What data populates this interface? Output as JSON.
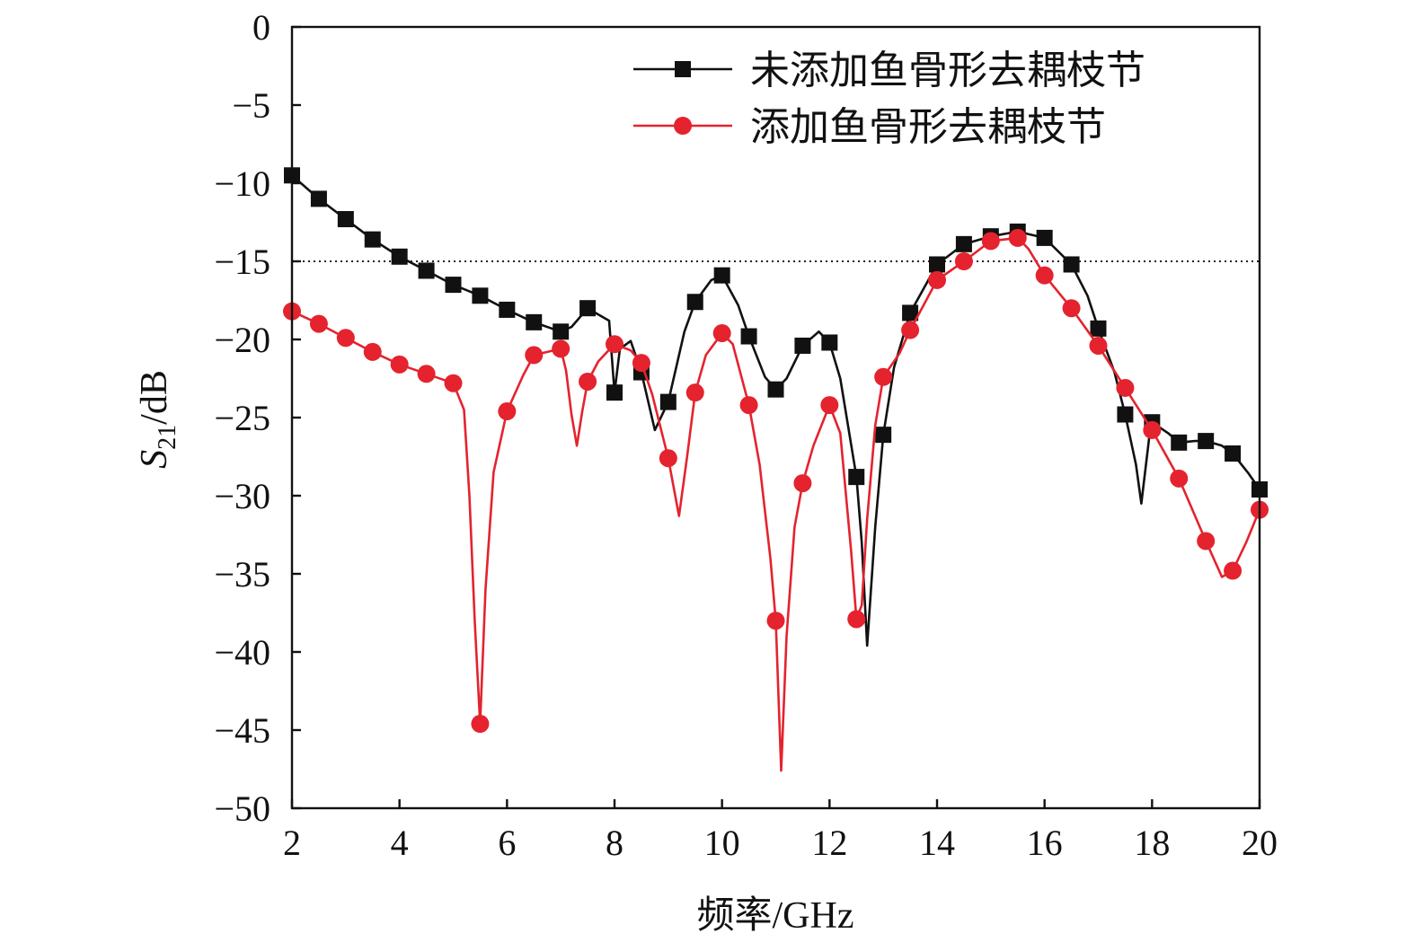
{
  "chart_data": {
    "type": "line",
    "title": "",
    "xlabel": "频率/GHz",
    "ylabel": {
      "main": "S",
      "sub": "21",
      "rest": "/dB"
    },
    "xlim": [
      2,
      20
    ],
    "ylim": [
      -50,
      0
    ],
    "xticks": [
      2,
      4,
      6,
      8,
      10,
      12,
      14,
      16,
      18,
      20
    ],
    "xtick_labels": [
      "2",
      "4",
      "6",
      "8",
      "10",
      "12",
      "14",
      "16",
      "18",
      "20"
    ],
    "yticks": [
      0,
      -5,
      -10,
      -15,
      -20,
      -25,
      -30,
      -35,
      -40,
      -45,
      -50
    ],
    "ytick_labels": [
      "0",
      "−5",
      "−10",
      "−15",
      "−20",
      "−25",
      "−30",
      "−35",
      "−40",
      "−45",
      "−50"
    ],
    "reference_line": {
      "y": -15,
      "style": "dotted"
    },
    "grid": false,
    "legend_position": "top-right",
    "series": [
      {
        "name": "未添加鱼骨形去耦枝节",
        "color": "#111111",
        "marker": "square",
        "curve": [
          [
            2.0,
            -9.5
          ],
          [
            2.5,
            -11.0
          ],
          [
            3.0,
            -12.3
          ],
          [
            3.5,
            -13.6
          ],
          [
            4.0,
            -14.7
          ],
          [
            4.5,
            -15.6
          ],
          [
            5.0,
            -16.5
          ],
          [
            5.5,
            -17.2
          ],
          [
            6.0,
            -18.1
          ],
          [
            6.5,
            -18.9
          ],
          [
            7.0,
            -19.5
          ],
          [
            7.2,
            -19.2
          ],
          [
            7.5,
            -18.0
          ],
          [
            7.7,
            -18.4
          ],
          [
            7.9,
            -18.8
          ],
          [
            8.0,
            -23.4
          ],
          [
            8.1,
            -20.6
          ],
          [
            8.3,
            -20.1
          ],
          [
            8.5,
            -22.1
          ],
          [
            8.75,
            -25.8
          ],
          [
            9.0,
            -24.0
          ],
          [
            9.3,
            -19.5
          ],
          [
            9.5,
            -17.6
          ],
          [
            9.8,
            -16.2
          ],
          [
            10.0,
            -15.9
          ],
          [
            10.3,
            -17.8
          ],
          [
            10.5,
            -19.8
          ],
          [
            10.8,
            -22.4
          ],
          [
            11.0,
            -23.2
          ],
          [
            11.2,
            -22.5
          ],
          [
            11.5,
            -20.4
          ],
          [
            11.8,
            -19.5
          ],
          [
            12.0,
            -20.2
          ],
          [
            12.2,
            -22.5
          ],
          [
            12.5,
            -28.8
          ],
          [
            12.6,
            -33.0
          ],
          [
            12.7,
            -39.6
          ],
          [
            12.85,
            -32.0
          ],
          [
            13.0,
            -26.1
          ],
          [
            13.2,
            -21.8
          ],
          [
            13.5,
            -18.3
          ],
          [
            14.0,
            -15.2
          ],
          [
            14.5,
            -13.9
          ],
          [
            15.0,
            -13.4
          ],
          [
            15.5,
            -13.1
          ],
          [
            16.0,
            -13.5
          ],
          [
            16.5,
            -15.2
          ],
          [
            16.8,
            -17.2
          ],
          [
            17.0,
            -19.3
          ],
          [
            17.3,
            -22.1
          ],
          [
            17.5,
            -24.8
          ],
          [
            17.7,
            -28.0
          ],
          [
            17.8,
            -30.5
          ],
          [
            17.95,
            -26.2
          ],
          [
            18.0,
            -25.3
          ],
          [
            18.3,
            -26.0
          ],
          [
            18.5,
            -26.6
          ],
          [
            18.8,
            -26.5
          ],
          [
            19.0,
            -26.5
          ],
          [
            19.3,
            -26.8
          ],
          [
            19.5,
            -27.3
          ],
          [
            19.8,
            -28.6
          ],
          [
            20.0,
            -29.6
          ]
        ],
        "markers": [
          [
            2.0,
            -9.5
          ],
          [
            2.5,
            -11.0
          ],
          [
            3.0,
            -12.3
          ],
          [
            3.5,
            -13.6
          ],
          [
            4.0,
            -14.7
          ],
          [
            4.5,
            -15.6
          ],
          [
            5.0,
            -16.5
          ],
          [
            5.5,
            -17.2
          ],
          [
            6.0,
            -18.1
          ],
          [
            6.5,
            -18.9
          ],
          [
            7.0,
            -19.5
          ],
          [
            7.5,
            -18.0
          ],
          [
            8.0,
            -23.4
          ],
          [
            8.5,
            -22.1
          ],
          [
            9.0,
            -24.0
          ],
          [
            9.5,
            -17.6
          ],
          [
            10.0,
            -15.9
          ],
          [
            10.5,
            -19.8
          ],
          [
            11.0,
            -23.2
          ],
          [
            11.5,
            -20.4
          ],
          [
            12.0,
            -20.2
          ],
          [
            12.5,
            -28.8
          ],
          [
            13.0,
            -26.1
          ],
          [
            13.5,
            -18.3
          ],
          [
            14.0,
            -15.2
          ],
          [
            14.5,
            -13.9
          ],
          [
            15.0,
            -13.4
          ],
          [
            15.5,
            -13.1
          ],
          [
            16.0,
            -13.5
          ],
          [
            16.5,
            -15.2
          ],
          [
            17.0,
            -19.3
          ],
          [
            17.5,
            -24.8
          ],
          [
            18.0,
            -25.3
          ],
          [
            18.5,
            -26.6
          ],
          [
            19.0,
            -26.5
          ],
          [
            19.5,
            -27.3
          ],
          [
            20.0,
            -29.6
          ]
        ]
      },
      {
        "name": "添加鱼骨形去耦枝节",
        "color": "#e4232e",
        "marker": "circle",
        "curve": [
          [
            2.0,
            -18.2
          ],
          [
            2.5,
            -19.0
          ],
          [
            3.0,
            -19.9
          ],
          [
            3.5,
            -20.8
          ],
          [
            4.0,
            -21.6
          ],
          [
            4.5,
            -22.2
          ],
          [
            5.0,
            -22.8
          ],
          [
            5.2,
            -24.5
          ],
          [
            5.3,
            -30.0
          ],
          [
            5.4,
            -38.0
          ],
          [
            5.5,
            -44.6
          ],
          [
            5.6,
            -36.0
          ],
          [
            5.75,
            -28.5
          ],
          [
            6.0,
            -24.6
          ],
          [
            6.3,
            -22.3
          ],
          [
            6.5,
            -21.0
          ],
          [
            7.0,
            -20.6
          ],
          [
            7.1,
            -22.0
          ],
          [
            7.2,
            -24.8
          ],
          [
            7.3,
            -26.8
          ],
          [
            7.4,
            -24.6
          ],
          [
            7.5,
            -22.7
          ],
          [
            7.7,
            -21.4
          ],
          [
            8.0,
            -20.3
          ],
          [
            8.3,
            -20.7
          ],
          [
            8.5,
            -21.5
          ],
          [
            8.7,
            -23.5
          ],
          [
            9.0,
            -27.6
          ],
          [
            9.2,
            -31.3
          ],
          [
            9.35,
            -27.5
          ],
          [
            9.5,
            -23.4
          ],
          [
            9.7,
            -21.0
          ],
          [
            10.0,
            -19.6
          ],
          [
            10.2,
            -20.3
          ],
          [
            10.5,
            -24.2
          ],
          [
            10.7,
            -28.0
          ],
          [
            10.9,
            -34.0
          ],
          [
            11.0,
            -38.0
          ],
          [
            11.1,
            -47.6
          ],
          [
            11.2,
            -39.0
          ],
          [
            11.35,
            -32.0
          ],
          [
            11.5,
            -29.2
          ],
          [
            11.7,
            -26.8
          ],
          [
            12.0,
            -24.2
          ],
          [
            12.2,
            -26.0
          ],
          [
            12.4,
            -33.5
          ],
          [
            12.5,
            -37.9
          ],
          [
            12.6,
            -37.0
          ],
          [
            12.7,
            -31.5
          ],
          [
            12.85,
            -25.5
          ],
          [
            13.0,
            -22.4
          ],
          [
            13.3,
            -20.9
          ],
          [
            13.5,
            -19.4
          ],
          [
            14.0,
            -16.2
          ],
          [
            14.5,
            -15.0
          ],
          [
            15.0,
            -13.7
          ],
          [
            15.5,
            -13.5
          ],
          [
            15.7,
            -14.2
          ],
          [
            16.0,
            -15.9
          ],
          [
            16.5,
            -18.0
          ],
          [
            17.0,
            -20.4
          ],
          [
            17.5,
            -23.1
          ],
          [
            18.0,
            -25.8
          ],
          [
            18.5,
            -28.9
          ],
          [
            19.0,
            -32.9
          ],
          [
            19.3,
            -35.2
          ],
          [
            19.5,
            -34.8
          ],
          [
            19.75,
            -33.0
          ],
          [
            20.0,
            -30.9
          ]
        ],
        "markers": [
          [
            2.0,
            -18.2
          ],
          [
            2.5,
            -19.0
          ],
          [
            3.0,
            -19.9
          ],
          [
            3.5,
            -20.8
          ],
          [
            4.0,
            -21.6
          ],
          [
            4.5,
            -22.2
          ],
          [
            5.0,
            -22.8
          ],
          [
            5.5,
            -44.6
          ],
          [
            6.0,
            -24.6
          ],
          [
            6.5,
            -21.0
          ],
          [
            7.0,
            -20.6
          ],
          [
            7.5,
            -22.7
          ],
          [
            8.0,
            -20.3
          ],
          [
            8.5,
            -21.5
          ],
          [
            9.0,
            -27.6
          ],
          [
            9.5,
            -23.4
          ],
          [
            10.0,
            -19.6
          ],
          [
            10.5,
            -24.2
          ],
          [
            11.0,
            -38.0
          ],
          [
            11.5,
            -29.2
          ],
          [
            12.0,
            -24.2
          ],
          [
            12.5,
            -37.9
          ],
          [
            13.0,
            -22.4
          ],
          [
            13.5,
            -19.4
          ],
          [
            14.0,
            -16.2
          ],
          [
            14.5,
            -15.0
          ],
          [
            15.0,
            -13.7
          ],
          [
            15.5,
            -13.5
          ],
          [
            16.0,
            -15.9
          ],
          [
            16.5,
            -18.0
          ],
          [
            17.0,
            -20.4
          ],
          [
            17.5,
            -23.1
          ],
          [
            18.0,
            -25.8
          ],
          [
            18.5,
            -28.9
          ],
          [
            19.0,
            -32.9
          ],
          [
            19.5,
            -34.8
          ],
          [
            20.0,
            -30.9
          ]
        ]
      }
    ]
  }
}
